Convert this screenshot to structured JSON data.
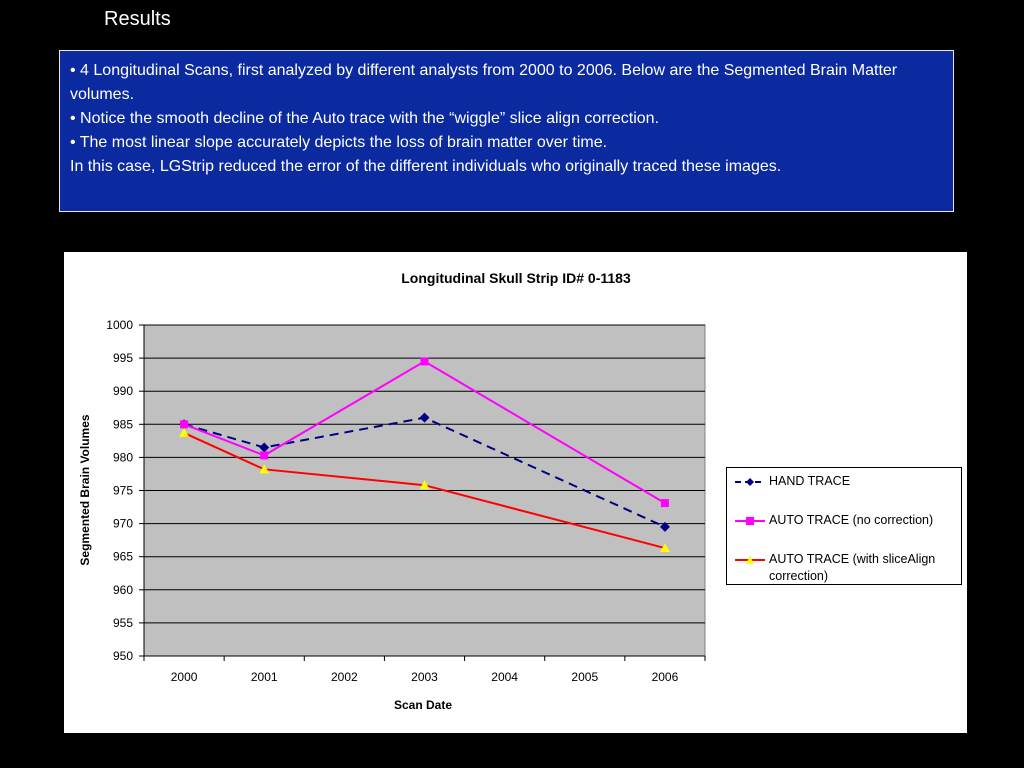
{
  "slide": {
    "title": "Results",
    "info_lines": [
      "• 4 Longitudinal Scans, first analyzed by different analysts from 2000 to 2006.  Below are the Segmented Brain Matter volumes.",
      "• Notice the smooth decline of the Auto trace with the “wiggle” slice align correction.",
      "• The most linear slope accurately depicts the loss of brain matter over time.",
      "In this case, LGStrip reduced the error of the different individuals who originally traced these images."
    ],
    "colors": {
      "background": "#000000",
      "info_box": "#0b2aa0",
      "plot_area": "#c0c0c0"
    }
  },
  "chart_data": {
    "type": "line",
    "title": "Longitudinal Skull Strip ID# 0-1183",
    "xlabel": "Scan Date",
    "ylabel": "Segmented Brain Volumes",
    "categories": [
      "2000",
      "2001",
      "2002",
      "2003",
      "2004",
      "2005",
      "2006"
    ],
    "ylim": [
      950,
      1000
    ],
    "yticks": [
      1000,
      995,
      990,
      985,
      980,
      975,
      970,
      965,
      960,
      955,
      950
    ],
    "grid": true,
    "legend_position": "right",
    "series": [
      {
        "name": "HAND TRACE",
        "color": "#000080",
        "marker": "diamond",
        "dashed": true,
        "points": [
          [
            2000,
            985.0
          ],
          [
            2001,
            981.5
          ],
          [
            2003,
            986.0
          ],
          [
            2006,
            969.5
          ]
        ]
      },
      {
        "name": "AUTO TRACE (no correction)",
        "color": "#ff00ff",
        "marker": "square",
        "dashed": false,
        "points": [
          [
            2000,
            985.0
          ],
          [
            2001,
            980.3
          ],
          [
            2003,
            994.5
          ],
          [
            2006,
            973.1
          ]
        ]
      },
      {
        "name": "AUTO TRACE (with sliceAlign correction)",
        "color": "#ff0000",
        "marker_color": "#ffff00",
        "marker": "triangle",
        "dashed": false,
        "points": [
          [
            2000,
            983.7
          ],
          [
            2001,
            978.2
          ],
          [
            2003,
            975.8
          ],
          [
            2006,
            966.3
          ]
        ]
      }
    ]
  }
}
